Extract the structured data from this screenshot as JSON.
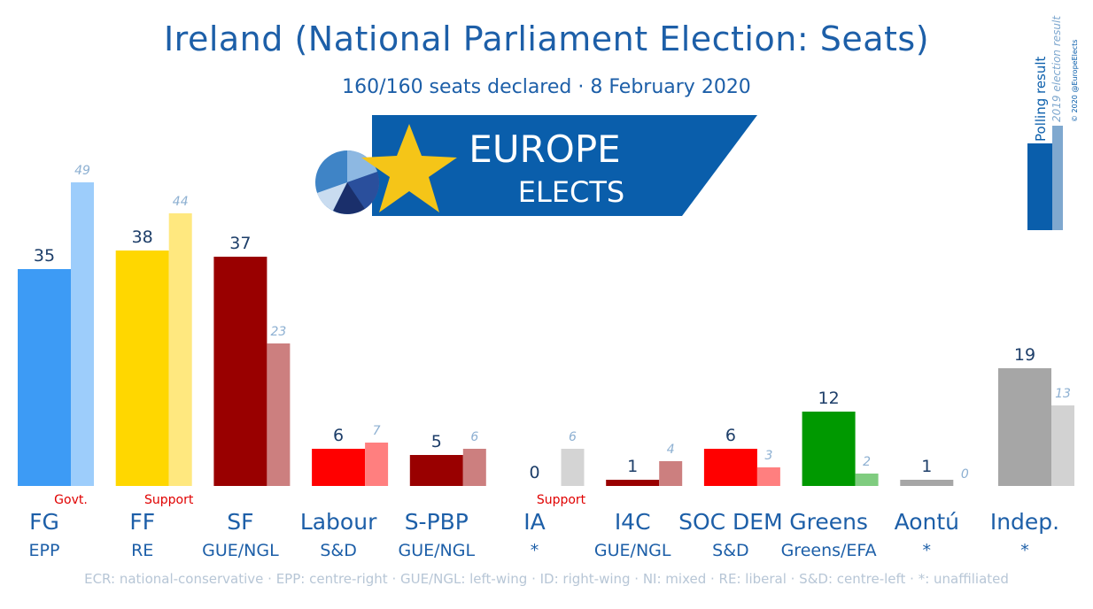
{
  "header": {
    "title": "Ireland (National Parliament Election: Seats)",
    "subtitle": "160/160 seats declared · 8 February 2020"
  },
  "logo": {
    "line1": "EUROPE",
    "line2": "ELECTS"
  },
  "legend": {
    "current_label": "Polling result",
    "previous_label": "2019 election result",
    "copyright": "© 2020 @EuropeElects"
  },
  "footnote": "ECR: national-conservative · EPP: centre-right · GUE/NGL: left-wing · ID: right-wing · NI: mixed · RE: liberal · S&D: centre-left · *: unaffiliated",
  "colors": {
    "title": "#1d5fa8",
    "accent": "#0a5eab",
    "note": "#e00000"
  },
  "chart_data": {
    "type": "bar",
    "ylim": [
      0,
      49
    ],
    "categories": [
      "FG",
      "FF",
      "SF",
      "Labour",
      "S-PBP",
      "IA",
      "I4C",
      "SOC DEM",
      "Greens",
      "Aontú",
      "Indep."
    ],
    "groups": [
      "EPP",
      "RE",
      "GUE/NGL",
      "S&D",
      "GUE/NGL",
      "*",
      "GUE/NGL",
      "S&D",
      "Greens/EFA",
      "*",
      "*"
    ],
    "notes": [
      "Govt.",
      "Support",
      "",
      "",
      "",
      "Support",
      "",
      "",
      "",
      "",
      ""
    ],
    "series": [
      {
        "name": "Polling result",
        "values": [
          35,
          38,
          37,
          6,
          5,
          0,
          1,
          6,
          12,
          1,
          19
        ]
      },
      {
        "name": "2019 election result",
        "values": [
          49,
          44,
          23,
          7,
          6,
          6,
          4,
          3,
          2,
          0,
          13
        ]
      }
    ],
    "current_colors": [
      "#3d9bf5",
      "#ffd700",
      "#990000",
      "#ff0000",
      "#990000",
      "#d4d4d4",
      "#990000",
      "#ff0000",
      "#009900",
      "#a6a6a6",
      "#a6a6a6"
    ],
    "previous_colors": [
      "#9dcdfb",
      "#ffe87f",
      "#cc7f7f",
      "#ff7f7f",
      "#cc7f7f",
      "#d4d4d4",
      "#cc7f7f",
      "#ff7f7f",
      "#7fcc7f",
      "#d2d2d2",
      "#d2d2d2"
    ]
  }
}
